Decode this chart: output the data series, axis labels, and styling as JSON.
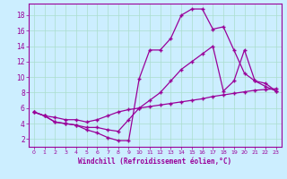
{
  "xlabel": "Windchill (Refroidissement éolien,°C)",
  "background_color": "#cceeff",
  "line_color": "#990099",
  "grid_color": "#aaddcc",
  "xlim": [
    -0.5,
    23.5
  ],
  "ylim": [
    1.0,
    19.5
  ],
  "yticks": [
    2,
    4,
    6,
    8,
    10,
    12,
    14,
    16,
    18
  ],
  "xticks": [
    0,
    1,
    2,
    3,
    4,
    5,
    6,
    7,
    8,
    9,
    10,
    11,
    12,
    13,
    14,
    15,
    16,
    17,
    18,
    19,
    20,
    21,
    22,
    23
  ],
  "line1_x": [
    0,
    1,
    2,
    3,
    4,
    5,
    6,
    7,
    8,
    9,
    10,
    11,
    12,
    13,
    14,
    15,
    16,
    17,
    18,
    19,
    20,
    21,
    22,
    23
  ],
  "line1_y": [
    5.5,
    5.0,
    4.2,
    4.0,
    3.8,
    3.2,
    2.8,
    2.2,
    1.8,
    1.8,
    9.8,
    13.5,
    13.5,
    15.0,
    18.0,
    18.8,
    18.8,
    16.2,
    16.5,
    13.5,
    10.5,
    9.5,
    8.8,
    8.2
  ],
  "line2_x": [
    0,
    1,
    2,
    3,
    4,
    5,
    6,
    7,
    8,
    9,
    10,
    11,
    12,
    13,
    14,
    15,
    16,
    17,
    18,
    19,
    20,
    21,
    22,
    23
  ],
  "line2_y": [
    5.5,
    5.0,
    4.2,
    4.0,
    3.8,
    3.5,
    3.5,
    3.2,
    3.0,
    4.5,
    6.0,
    7.0,
    8.0,
    9.5,
    11.0,
    12.0,
    13.0,
    14.0,
    8.2,
    9.5,
    13.5,
    9.5,
    9.2,
    8.2
  ],
  "line3_x": [
    0,
    1,
    2,
    3,
    4,
    5,
    6,
    7,
    8,
    9,
    10,
    11,
    12,
    13,
    14,
    15,
    16,
    17,
    18,
    19,
    20,
    21,
    22,
    23
  ],
  "line3_y": [
    5.5,
    5.0,
    4.8,
    4.5,
    4.5,
    4.2,
    4.5,
    5.0,
    5.5,
    5.8,
    6.0,
    6.2,
    6.4,
    6.6,
    6.8,
    7.0,
    7.2,
    7.5,
    7.7,
    7.9,
    8.1,
    8.3,
    8.4,
    8.5
  ]
}
